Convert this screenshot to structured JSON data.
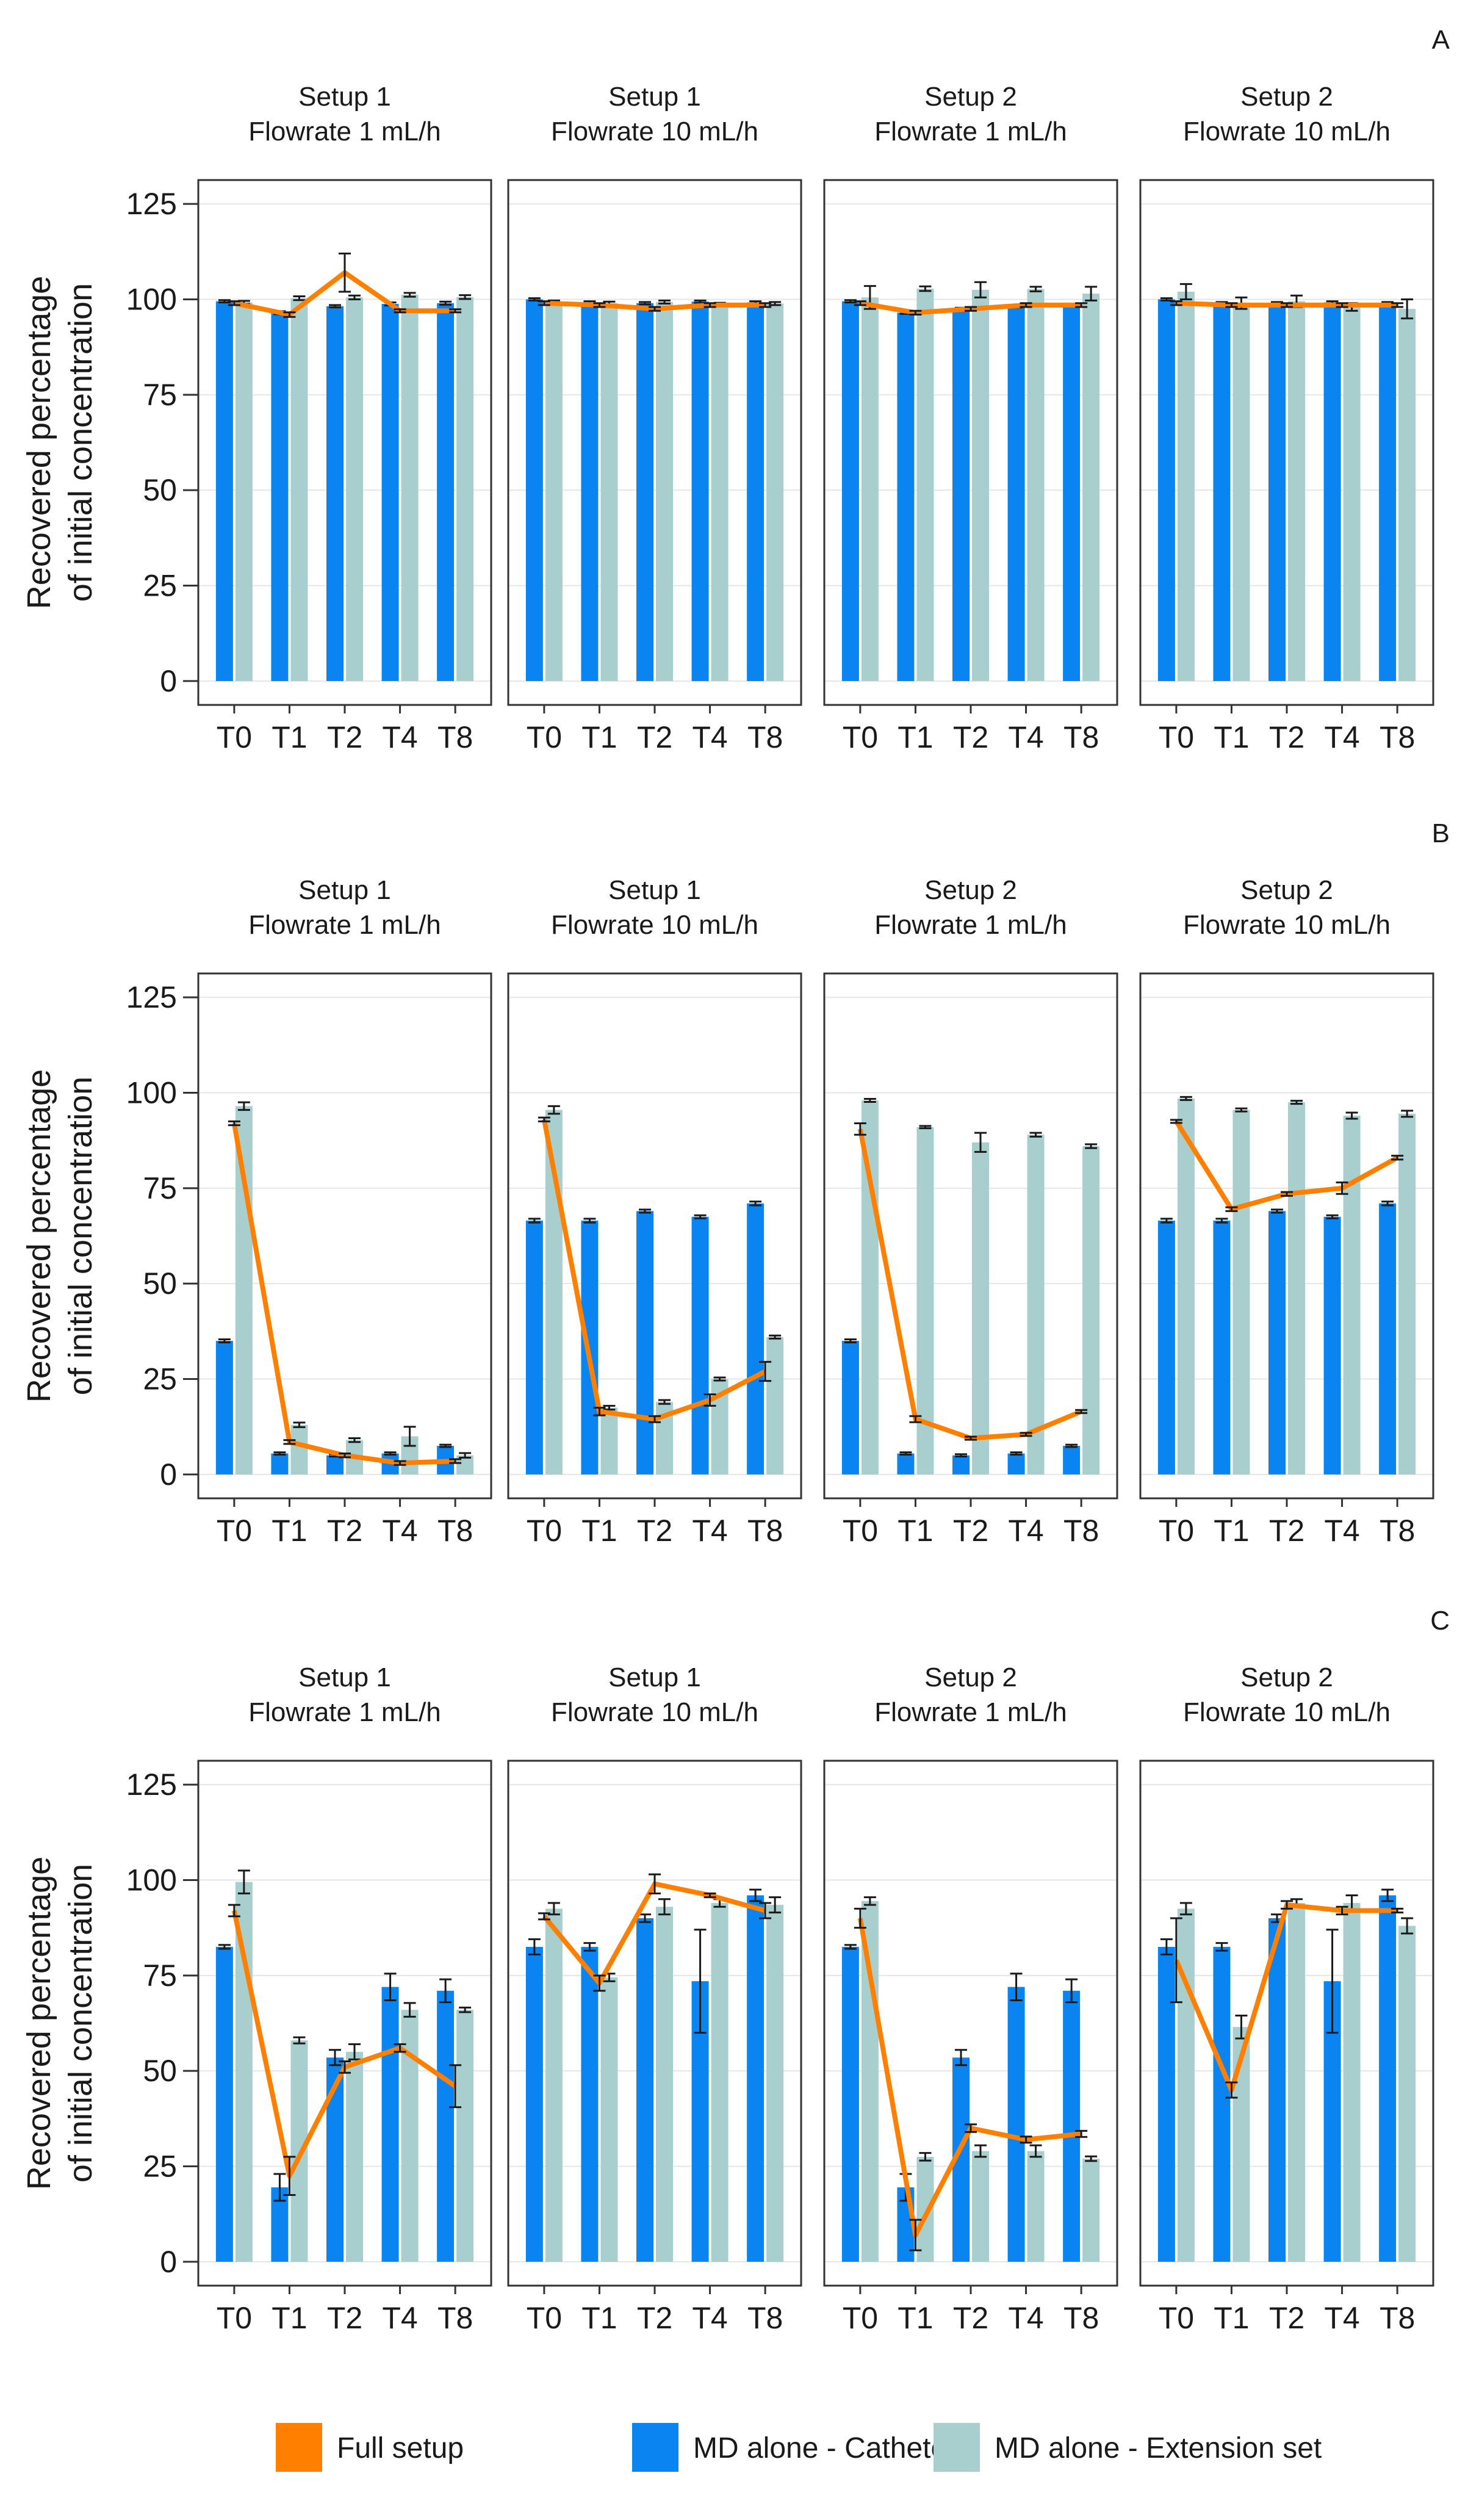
{
  "legend": [
    {
      "name": "Full setup",
      "color": "#ff7f00"
    },
    {
      "name": "MD alone - Catheter",
      "color": "#0a84f0"
    },
    {
      "name": "MD alone - Extension set",
      "color": "#a9cece"
    }
  ],
  "chart_data": [
    {
      "type": "bar+line",
      "panel_letter": "A",
      "ylabel_line1": "Recovered percentage",
      "ylabel_line2": "of initial concentration",
      "ylim": [
        0,
        125
      ],
      "yticks": [
        "0",
        "25",
        "50",
        "75",
        "100",
        "125"
      ],
      "facets": [
        {
          "title_line1": "Setup 1",
          "title_line2": "Flowrate 1 mL/h",
          "categories": [
            "T0",
            "T1",
            "T2",
            "T4",
            "T8"
          ],
          "series": [
            {
              "name": "MD alone - Catheter",
              "values": [
                99.5,
                96.5,
                98.2,
                98.8,
                99.0
              ],
              "err": [
                0.3,
                0.4,
                0.3,
                0.4,
                0.4
              ]
            },
            {
              "name": "MD alone - Extension set",
              "values": [
                99.2,
                100.3,
                100.5,
                101.2,
                100.6
              ],
              "err": [
                0.4,
                0.5,
                0.5,
                0.5,
                0.5
              ]
            },
            {
              "name": "Full setup",
              "values": [
                99.0,
                96.0,
                107.0,
                97.0,
                97.0
              ],
              "err": [
                0.5,
                0.6,
                5.0,
                0.4,
                0.4
              ]
            }
          ]
        },
        {
          "title_line1": "Setup 1",
          "title_line2": "Flowrate 10 mL/h",
          "categories": [
            "T0",
            "T1",
            "T2",
            "T4",
            "T8"
          ],
          "series": [
            {
              "name": "MD alone - Catheter",
              "values": [
                100.0,
                99.2,
                99.0,
                99.4,
                99.2
              ],
              "err": [
                0.3,
                0.3,
                0.3,
                0.3,
                0.3
              ]
            },
            {
              "name": "MD alone - Extension set",
              "values": [
                99.3,
                99.0,
                99.3,
                98.7,
                98.9
              ],
              "err": [
                0.4,
                0.4,
                0.4,
                0.4,
                0.4
              ]
            },
            {
              "name": "Full setup",
              "values": [
                99.0,
                98.5,
                97.5,
                98.5,
                98.5
              ],
              "err": [
                0.5,
                0.5,
                0.5,
                0.5,
                0.5
              ]
            }
          ]
        },
        {
          "title_line1": "Setup 2",
          "title_line2": "Flowrate 1 mL/h",
          "categories": [
            "T0",
            "T1",
            "T2",
            "T4",
            "T8"
          ],
          "series": [
            {
              "name": "MD alone - Catheter",
              "values": [
                99.5,
                96.5,
                97.5,
                98.2,
                98.5
              ],
              "err": [
                0.3,
                0.3,
                0.3,
                0.3,
                0.3
              ]
            },
            {
              "name": "MD alone - Extension set",
              "values": [
                100.5,
                102.8,
                102.5,
                102.7,
                101.5
              ],
              "err": [
                3.0,
                0.6,
                2.0,
                0.6,
                1.8
              ]
            },
            {
              "name": "Full setup",
              "values": [
                99.0,
                96.5,
                97.5,
                98.5,
                98.5
              ],
              "err": [
                0.5,
                0.5,
                0.5,
                0.5,
                0.5
              ]
            }
          ]
        },
        {
          "title_line1": "Setup 2",
          "title_line2": "Flowrate 10 mL/h",
          "categories": [
            "T0",
            "T1",
            "T2",
            "T4",
            "T8"
          ],
          "series": [
            {
              "name": "MD alone - Catheter",
              "values": [
                100.0,
                99.0,
                99.0,
                99.2,
                99.0
              ],
              "err": [
                0.3,
                0.3,
                0.3,
                0.3,
                0.3
              ]
            },
            {
              "name": "MD alone - Extension set",
              "values": [
                102.0,
                99.0,
                99.5,
                98.0,
                97.5
              ],
              "err": [
                2.0,
                1.5,
                1.5,
                1.0,
                2.5
              ]
            },
            {
              "name": "Full setup",
              "values": [
                99.0,
                98.5,
                98.5,
                98.5,
                98.5
              ],
              "err": [
                0.5,
                0.5,
                0.5,
                0.5,
                0.5
              ]
            }
          ]
        }
      ]
    },
    {
      "type": "bar+line",
      "panel_letter": "B",
      "ylabel_line1": "Recovered percentage",
      "ylabel_line2": "of initial concentration",
      "ylim": [
        0,
        125
      ],
      "yticks": [
        "0",
        "25",
        "50",
        "75",
        "100",
        "125"
      ],
      "facets": [
        {
          "title_line1": "Setup 1",
          "title_line2": "Flowrate 1 mL/h",
          "categories": [
            "T0",
            "T1",
            "T2",
            "T4",
            "T8"
          ],
          "series": [
            {
              "name": "MD alone - Catheter",
              "values": [
                35.0,
                5.5,
                5.0,
                5.5,
                7.5
              ],
              "err": [
                0.4,
                0.3,
                0.3,
                0.3,
                0.3
              ]
            },
            {
              "name": "MD alone - Extension set",
              "values": [
                96.5,
                13.0,
                9.0,
                10.0,
                5.0
              ],
              "err": [
                1.0,
                0.6,
                0.5,
                2.5,
                0.6
              ]
            },
            {
              "name": "Full setup",
              "values": [
                92.0,
                8.5,
                5.0,
                3.0,
                3.5
              ],
              "err": [
                0.5,
                0.5,
                0.5,
                0.5,
                0.5
              ]
            }
          ]
        },
        {
          "title_line1": "Setup 1",
          "title_line2": "Flowrate 10 mL/h",
          "categories": [
            "T0",
            "T1",
            "T2",
            "T4",
            "T8"
          ],
          "series": [
            {
              "name": "MD alone - Catheter",
              "values": [
                66.5,
                66.5,
                69.0,
                67.5,
                71.0
              ],
              "err": [
                0.5,
                0.5,
                0.4,
                0.4,
                0.5
              ]
            },
            {
              "name": "MD alone - Extension set",
              "values": [
                95.5,
                17.5,
                19.0,
                25.0,
                36.0
              ],
              "err": [
                1.0,
                0.5,
                0.5,
                0.4,
                0.4
              ]
            },
            {
              "name": "Full setup",
              "values": [
                93.0,
                16.5,
                14.5,
                19.5,
                27.0
              ],
              "err": [
                0.5,
                1.0,
                0.8,
                1.5,
                2.5
              ]
            }
          ]
        },
        {
          "title_line1": "Setup 2",
          "title_line2": "Flowrate 1 mL/h",
          "categories": [
            "T0",
            "T1",
            "T2",
            "T4",
            "T8"
          ],
          "series": [
            {
              "name": "MD alone - Catheter",
              "values": [
                35.0,
                5.5,
                5.0,
                5.5,
                7.5
              ],
              "err": [
                0.4,
                0.3,
                0.3,
                0.3,
                0.3
              ]
            },
            {
              "name": "MD alone - Extension set",
              "values": [
                98.0,
                91.0,
                87.0,
                89.0,
                86.0
              ],
              "err": [
                0.4,
                0.3,
                2.5,
                0.5,
                0.5
              ]
            },
            {
              "name": "Full setup",
              "values": [
                90.5,
                14.5,
                9.5,
                10.5,
                16.5
              ],
              "err": [
                1.5,
                0.8,
                0.4,
                0.4,
                0.4
              ]
            }
          ]
        },
        {
          "title_line1": "Setup 2",
          "title_line2": "Flowrate 10 mL/h",
          "categories": [
            "T0",
            "T1",
            "T2",
            "T4",
            "T8"
          ],
          "series": [
            {
              "name": "MD alone - Catheter",
              "values": [
                66.5,
                66.5,
                69.0,
                67.5,
                71.0
              ],
              "err": [
                0.5,
                0.5,
                0.4,
                0.4,
                0.5
              ]
            },
            {
              "name": "MD alone - Extension set",
              "values": [
                98.5,
                95.5,
                97.5,
                94.0,
                94.5
              ],
              "err": [
                0.4,
                0.4,
                0.4,
                0.8,
                0.8
              ]
            },
            {
              "name": "Full setup",
              "values": [
                92.5,
                69.5,
                73.5,
                75.0,
                83.0
              ],
              "err": [
                0.4,
                0.5,
                0.5,
                1.5,
                0.5
              ]
            }
          ]
        }
      ]
    },
    {
      "type": "bar+line",
      "panel_letter": "C",
      "ylabel_line1": "Recovered percentage",
      "ylabel_line2": "of initial concentration",
      "ylim": [
        0,
        125
      ],
      "yticks": [
        "0",
        "25",
        "50",
        "75",
        "100",
        "125"
      ],
      "facets": [
        {
          "title_line1": "Setup 1",
          "title_line2": "Flowrate 1 mL/h",
          "categories": [
            "T0",
            "T1",
            "T2",
            "T4",
            "T8"
          ],
          "series": [
            {
              "name": "MD alone - Catheter",
              "values": [
                82.5,
                19.5,
                53.5,
                72.0,
                71.0
              ],
              "err": [
                0.5,
                3.5,
                2.0,
                3.5,
                3.0
              ]
            },
            {
              "name": "MD alone - Extension set",
              "values": [
                99.5,
                58.0,
                55.0,
                66.0,
                66.0
              ],
              "err": [
                3.0,
                0.8,
                2.0,
                1.8,
                0.6
              ]
            },
            {
              "name": "Full setup",
              "values": [
                92.0,
                22.5,
                51.0,
                56.0,
                46.0
              ],
              "err": [
                1.5,
                5.0,
                1.5,
                1.0,
                5.5
              ]
            }
          ]
        },
        {
          "title_line1": "Setup 1",
          "title_line2": "Flowrate 10 mL/h",
          "categories": [
            "T0",
            "T1",
            "T2",
            "T4",
            "T8"
          ],
          "series": [
            {
              "name": "MD alone - Catheter",
              "values": [
                82.5,
                82.5,
                90.0,
                73.5,
                96.0
              ],
              "err": [
                2.0,
                1.0,
                1.0,
                13.5,
                1.5
              ]
            },
            {
              "name": "MD alone - Extension set",
              "values": [
                92.5,
                74.5,
                93.0,
                94.0,
                93.5
              ],
              "err": [
                1.5,
                1.0,
                2.0,
                1.0,
                2.0
              ]
            },
            {
              "name": "Full setup",
              "values": [
                90.5,
                73.0,
                99.0,
                96.0,
                92.0
              ],
              "err": [
                0.8,
                2.0,
                2.5,
                0.5,
                2.0
              ]
            }
          ]
        },
        {
          "title_line1": "Setup 2",
          "title_line2": "Flowrate 1 mL/h",
          "categories": [
            "T0",
            "T1",
            "T2",
            "T4",
            "T8"
          ],
          "series": [
            {
              "name": "MD alone - Catheter",
              "values": [
                82.5,
                19.5,
                53.5,
                72.0,
                71.0
              ],
              "err": [
                0.5,
                3.5,
                2.0,
                3.5,
                3.0
              ]
            },
            {
              "name": "MD alone - Extension set",
              "values": [
                94.5,
                27.5,
                29.0,
                29.0,
                27.0
              ],
              "err": [
                1.0,
                1.0,
                1.5,
                1.5,
                0.6
              ]
            },
            {
              "name": "Full setup",
              "values": [
                90.0,
                7.0,
                35.0,
                32.0,
                33.5
              ],
              "err": [
                2.5,
                4.0,
                1.0,
                0.8,
                0.8
              ]
            }
          ]
        },
        {
          "title_line1": "Setup 2",
          "title_line2": "Flowrate 10 mL/h",
          "categories": [
            "T0",
            "T1",
            "T2",
            "T4",
            "T8"
          ],
          "series": [
            {
              "name": "MD alone - Catheter",
              "values": [
                82.5,
                82.5,
                90.0,
                73.5,
                96.0
              ],
              "err": [
                2.0,
                1.0,
                1.0,
                13.5,
                1.5
              ]
            },
            {
              "name": "MD alone - Extension set",
              "values": [
                92.5,
                61.5,
                94.0,
                94.0,
                88.0
              ],
              "err": [
                1.5,
                3.0,
                1.0,
                2.0,
                2.0
              ]
            },
            {
              "name": "Full setup",
              "values": [
                79.0,
                45.0,
                93.5,
                92.0,
                92.0
              ],
              "err": [
                11.0,
                2.0,
                1.0,
                1.0,
                0.5
              ]
            }
          ]
        }
      ]
    }
  ]
}
